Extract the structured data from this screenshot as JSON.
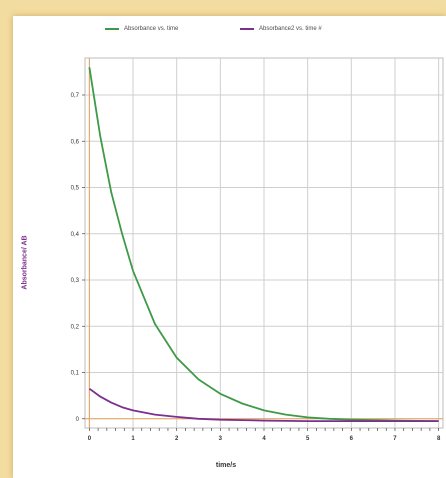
{
  "chart_data": {
    "type": "line",
    "title": "",
    "xlabel": "time/s",
    "ylabel": "Absorbance/ AB",
    "xlim": [
      -0.1,
      8.1
    ],
    "ylim": [
      -0.02,
      0.78
    ],
    "x_ticks": [
      "0",
      "1",
      "2",
      "3",
      "4",
      "5",
      "6",
      "7",
      "8"
    ],
    "y_ticks": [
      "0",
      "0,1",
      "0,2",
      "0,3",
      "0,4",
      "0,5",
      "0,6",
      "0,7"
    ],
    "y_tick_values": [
      0,
      0.1,
      0.2,
      0.3,
      0.4,
      0.5,
      0.6,
      0.7
    ],
    "grid": true,
    "legend": "top",
    "series": [
      {
        "name": "Absorbance vs. time",
        "color": "#3f9a48",
        "x": [
          0,
          0.25,
          0.5,
          0.75,
          1,
          1.5,
          2,
          2.5,
          3,
          3.5,
          4,
          4.5,
          5,
          5.5,
          6,
          7,
          8
        ],
        "values": [
          0.76,
          0.61,
          0.49,
          0.4,
          0.32,
          0.205,
          0.132,
          0.085,
          0.054,
          0.033,
          0.018,
          0.009,
          0.003,
          0.0,
          -0.002,
          -0.004,
          -0.005
        ]
      },
      {
        "name": "Absorbance2 vs. time #",
        "color": "#7b2f8e",
        "x": [
          0,
          0.25,
          0.5,
          0.75,
          1,
          1.5,
          2,
          2.5,
          3,
          3.5,
          4,
          5,
          6,
          7,
          8
        ],
        "values": [
          0.065,
          0.048,
          0.035,
          0.025,
          0.018,
          0.009,
          0.004,
          0.0,
          -0.002,
          -0.003,
          -0.004,
          -0.005,
          -0.005,
          -0.005,
          -0.005
        ]
      }
    ]
  }
}
